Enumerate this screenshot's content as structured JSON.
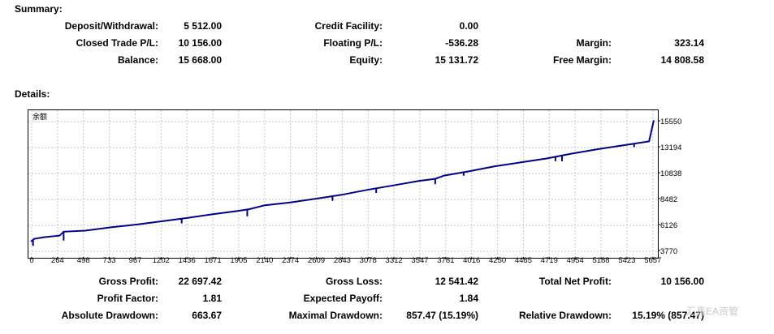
{
  "summary": {
    "title": "Summary:",
    "deposit_label": "Deposit/Withdrawal:",
    "deposit_value": "5 512.00",
    "credit_label": "Credit Facility:",
    "credit_value": "0.00",
    "closed_label": "Closed Trade P/L:",
    "closed_value": "10 156.00",
    "floating_label": "Floating P/L:",
    "floating_value": "-536.28",
    "margin_label": "Margin:",
    "margin_value": "323.14",
    "balance_label": "Balance:",
    "balance_value": "15 668.00",
    "equity_label": "Equity:",
    "equity_value": "15 131.72",
    "free_margin_label": "Free Margin:",
    "free_margin_value": "14 808.58"
  },
  "details": {
    "title": "Details:"
  },
  "stats": {
    "gross_profit_label": "Gross Profit:",
    "gross_profit_value": "22 697.42",
    "gross_loss_label": "Gross Loss:",
    "gross_loss_value": "12 541.42",
    "net_profit_label": "Total Net Profit:",
    "net_profit_value": "10 156.00",
    "profit_factor_label": "Profit Factor:",
    "profit_factor_value": "1.81",
    "expected_payoff_label": "Expected Payoff:",
    "expected_payoff_value": "1.84",
    "abs_dd_label": "Absolute Drawdown:",
    "abs_dd_value": "663.67",
    "max_dd_label": "Maximal Drawdown:",
    "max_dd_value": "857.47 (15.19%)",
    "rel_dd_label": "Relative Drawdown:",
    "rel_dd_value": "15.19% (857.47)"
  },
  "watermark": "汇鑫EA资管",
  "chart_data": {
    "type": "line",
    "title": "余额",
    "x_ticks": [
      "0",
      "264",
      "498",
      "733",
      "967",
      "1202",
      "1436",
      "1671",
      "1905",
      "2140",
      "2374",
      "2609",
      "2843",
      "3078",
      "3312",
      "3547",
      "3781",
      "4016",
      "4250",
      "4485",
      "4719",
      "4954",
      "5188",
      "5423",
      "5657"
    ],
    "y_ticks": [
      15550,
      13194,
      10838,
      8482,
      6126,
      3770
    ],
    "xlim": [
      0,
      5700
    ],
    "ylim": [
      3770,
      15550
    ],
    "grid": true,
    "color": "#00008b",
    "series": [
      {
        "x": [
          0,
          30,
          120,
          264,
          300,
          498,
          733,
          967,
          1202,
          1436,
          1671,
          1905,
          2000,
          2140,
          2374,
          2609,
          2843,
          3078,
          3312,
          3547,
          3700,
          3781,
          4016,
          4250,
          4485,
          4719,
          4954,
          5188,
          5423,
          5657,
          5700
        ],
        "y": [
          4650,
          4900,
          5050,
          5200,
          5550,
          5650,
          5950,
          6200,
          6500,
          6800,
          7150,
          7450,
          7600,
          7950,
          8200,
          8550,
          8900,
          9350,
          9750,
          10150,
          10350,
          10650,
          11050,
          11500,
          11850,
          12200,
          12650,
          13050,
          13400,
          13750,
          15668
        ]
      }
    ],
    "dips": [
      {
        "x": 20,
        "depth": 550
      },
      {
        "x": 300,
        "depth": 800
      },
      {
        "x": 1380,
        "depth": 420
      },
      {
        "x": 1980,
        "depth": 620
      },
      {
        "x": 2760,
        "depth": 420
      },
      {
        "x": 3160,
        "depth": 420
      },
      {
        "x": 3700,
        "depth": 480
      },
      {
        "x": 3960,
        "depth": 320
      },
      {
        "x": 4800,
        "depth": 400
      },
      {
        "x": 4860,
        "depth": 520
      },
      {
        "x": 5520,
        "depth": 300
      }
    ]
  }
}
